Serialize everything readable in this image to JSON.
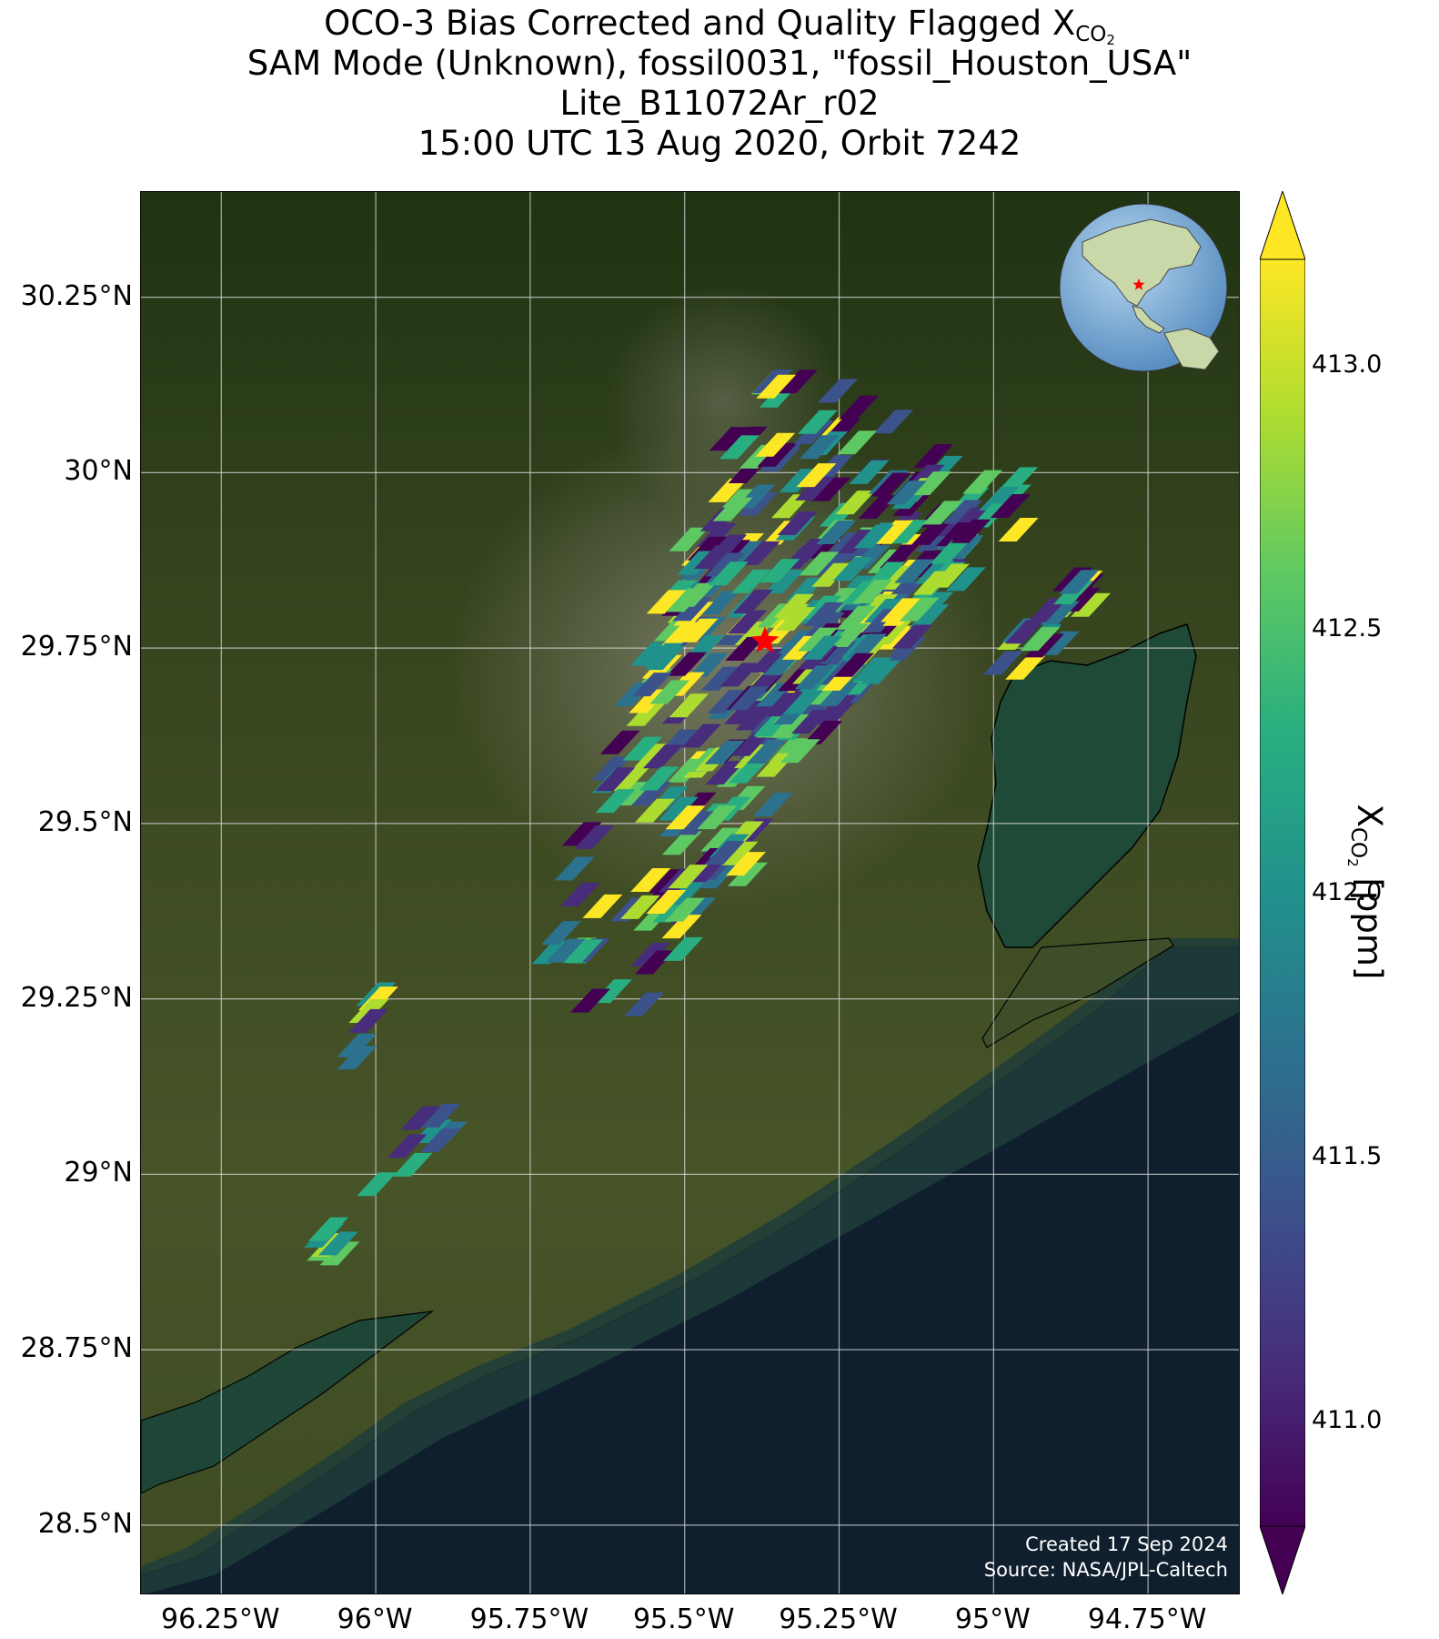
{
  "title": {
    "line1_text": "OCO-3 Bias Corrected and Quality Flagged X",
    "line1_sub": "CO",
    "line1_subsub": "2",
    "line2": "SAM Mode (Unknown), fossil0031, \"fossil_Houston_USA\"",
    "line3": "Lite_B11072Ar_r02",
    "line4": "15:00 UTC 13 Aug 2020, Orbit 7242"
  },
  "map": {
    "lon_range": [
      -96.38,
      -94.6
    ],
    "lat_range": [
      28.4,
      30.4
    ],
    "lat_ticks": [
      {
        "value": 30.25,
        "label": "30.25°N"
      },
      {
        "value": 30.0,
        "label": "30°N"
      },
      {
        "value": 29.75,
        "label": "29.75°N"
      },
      {
        "value": 29.5,
        "label": "29.5°N"
      },
      {
        "value": 29.25,
        "label": "29.25°N"
      },
      {
        "value": 29.0,
        "label": "29°N"
      },
      {
        "value": 28.75,
        "label": "28.75°N"
      },
      {
        "value": 28.5,
        "label": "28.5°N"
      }
    ],
    "lon_ticks": [
      {
        "value": -96.25,
        "label": "96.25°W"
      },
      {
        "value": -96.0,
        "label": "96°W"
      },
      {
        "value": -95.75,
        "label": "95.75°W"
      },
      {
        "value": -95.5,
        "label": "95.5°W"
      },
      {
        "value": -95.25,
        "label": "95.25°W"
      },
      {
        "value": -95.0,
        "label": "95°W"
      },
      {
        "value": -94.75,
        "label": "94.75°W"
      }
    ],
    "target": {
      "name": "fossil_Houston_USA",
      "lon": -95.37,
      "lat": 29.76,
      "marker": "red star"
    },
    "colors": {
      "land": "#3b4a22",
      "water": "#0f1f2e",
      "bay": "#1f4a38",
      "gridline": "#d9d9d9",
      "star": "#ff0000"
    },
    "credit_line1": "Created 17 Sep 2024",
    "credit_line2": "Source: NASA/JPL-Caltech"
  },
  "colorbar": {
    "colormap": "viridis",
    "range": [
      410.8,
      413.2
    ],
    "extend": "both",
    "ticks": [
      {
        "value": 411.0,
        "label": "411.0"
      },
      {
        "value": 411.5,
        "label": "411.5"
      },
      {
        "value": 412.0,
        "label": "412.0"
      },
      {
        "value": 412.5,
        "label": "412.5"
      },
      {
        "value": 413.0,
        "label": "413.0"
      }
    ],
    "label_text": "X",
    "label_sub": "CO",
    "label_subsub": "2",
    "label_unit": " [ppm]"
  }
}
